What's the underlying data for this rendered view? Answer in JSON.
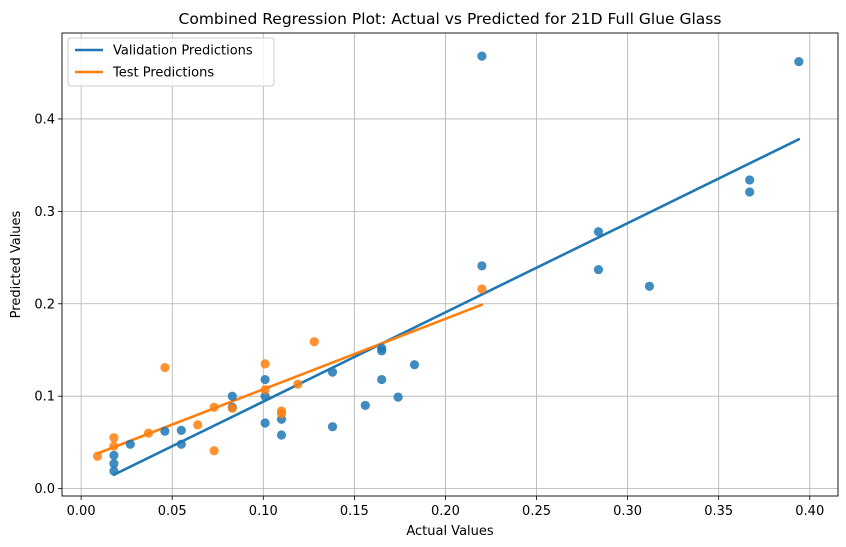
{
  "chart_data": {
    "type": "scatter",
    "title": "Combined Regression Plot: Actual vs Predicted for 21D Full Glue Glass",
    "xlabel": "Actual Values",
    "ylabel": "Predicted Values",
    "xlim": [
      -0.0105,
      0.4155
    ],
    "ylim": [
      -0.008,
      0.493
    ],
    "x_ticks": [
      0.0,
      0.05,
      0.1,
      0.15,
      0.2,
      0.25,
      0.3,
      0.35,
      0.4
    ],
    "x_tick_labels": [
      "0.00",
      "0.05",
      "0.10",
      "0.15",
      "0.20",
      "0.25",
      "0.30",
      "0.35",
      "0.40"
    ],
    "y_ticks": [
      0.0,
      0.1,
      0.2,
      0.3,
      0.4
    ],
    "y_tick_labels": [
      "0.0",
      "0.1",
      "0.2",
      "0.3",
      "0.4"
    ],
    "grid": true,
    "legend_position": "top-left",
    "series": [
      {
        "name": "Validation Predictions",
        "color": "#1f77b4",
        "points": [
          [
            0.018,
            0.036
          ],
          [
            0.018,
            0.027
          ],
          [
            0.018,
            0.019
          ],
          [
            0.027,
            0.048
          ],
          [
            0.046,
            0.062
          ],
          [
            0.055,
            0.063
          ],
          [
            0.055,
            0.048
          ],
          [
            0.083,
            0.1
          ],
          [
            0.083,
            0.088
          ],
          [
            0.101,
            0.118
          ],
          [
            0.101,
            0.1
          ],
          [
            0.101,
            0.071
          ],
          [
            0.11,
            0.075
          ],
          [
            0.11,
            0.058
          ],
          [
            0.138,
            0.126
          ],
          [
            0.138,
            0.067
          ],
          [
            0.156,
            0.09
          ],
          [
            0.165,
            0.152
          ],
          [
            0.165,
            0.149
          ],
          [
            0.165,
            0.118
          ],
          [
            0.174,
            0.099
          ],
          [
            0.183,
            0.134
          ],
          [
            0.22,
            0.468
          ],
          [
            0.22,
            0.241
          ],
          [
            0.284,
            0.278
          ],
          [
            0.284,
            0.237
          ],
          [
            0.312,
            0.219
          ],
          [
            0.367,
            0.334
          ],
          [
            0.367,
            0.321
          ],
          [
            0.394,
            0.462
          ]
        ],
        "fit_line": [
          [
            0.018,
            0.015
          ],
          [
            0.394,
            0.378
          ]
        ]
      },
      {
        "name": "Test Predictions",
        "color": "#ff7f0e",
        "points": [
          [
            0.009,
            0.035
          ],
          [
            0.018,
            0.055
          ],
          [
            0.018,
            0.046
          ],
          [
            0.037,
            0.06
          ],
          [
            0.046,
            0.131
          ],
          [
            0.064,
            0.069
          ],
          [
            0.073,
            0.088
          ],
          [
            0.073,
            0.041
          ],
          [
            0.083,
            0.087
          ],
          [
            0.101,
            0.135
          ],
          [
            0.101,
            0.107
          ],
          [
            0.11,
            0.084
          ],
          [
            0.11,
            0.081
          ],
          [
            0.119,
            0.113
          ],
          [
            0.128,
            0.159
          ],
          [
            0.22,
            0.216
          ]
        ],
        "fit_line": [
          [
            0.009,
            0.038
          ],
          [
            0.22,
            0.199
          ]
        ]
      }
    ]
  }
}
